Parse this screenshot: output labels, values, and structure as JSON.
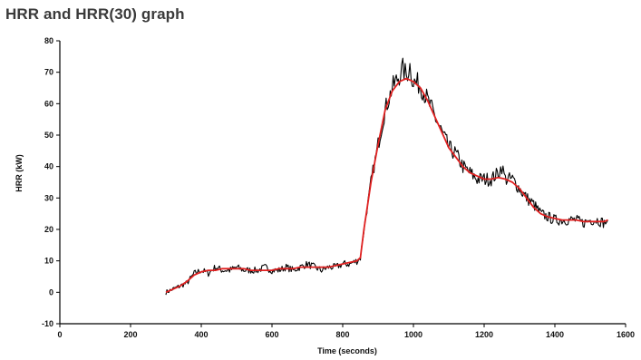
{
  "page_title": "HRR and HRR(30) graph",
  "chart_data": {
    "type": "line",
    "title": "HRR and HRR(30) graph",
    "xlabel": "Time (seconds)",
    "ylabel": "HRR (kW)",
    "xlim": [
      0,
      1600
    ],
    "ylim": [
      -10,
      80
    ],
    "xticks": [
      0,
      200,
      400,
      600,
      800,
      1000,
      1200,
      1400,
      1600
    ],
    "yticks": [
      -10,
      0,
      10,
      20,
      30,
      40,
      50,
      60,
      70,
      80
    ],
    "grid": false,
    "legend": "none",
    "series": [
      {
        "color": "#000000",
        "style": "noisy",
        "x": [
          300,
          320,
          340,
          360,
          380,
          400,
          420,
          440,
          460,
          480,
          500,
          520,
          540,
          560,
          580,
          600,
          620,
          640,
          660,
          680,
          700,
          720,
          740,
          760,
          780,
          800,
          820,
          840,
          850,
          860,
          880,
          900,
          920,
          940,
          960,
          970,
          980,
          990,
          1000,
          1020,
          1040,
          1060,
          1080,
          1100,
          1120,
          1140,
          1160,
          1180,
          1200,
          1220,
          1240,
          1250,
          1260,
          1280,
          1300,
          1320,
          1340,
          1360,
          1380,
          1400,
          1420,
          1440,
          1460,
          1480,
          1500,
          1520,
          1540,
          1550
        ],
        "values": [
          0,
          1,
          2,
          3,
          6,
          7,
          6,
          8,
          7,
          7,
          8,
          7,
          7,
          7,
          8,
          7,
          7,
          8,
          7,
          8,
          9,
          8,
          7,
          8,
          8,
          9,
          9,
          10,
          11,
          20,
          35,
          47,
          58,
          65,
          69,
          71,
          69,
          72,
          67,
          66,
          61,
          56,
          51,
          46,
          44,
          40,
          38,
          36,
          36,
          36,
          38,
          40,
          36,
          36,
          33,
          30,
          28,
          25,
          24,
          23,
          23,
          23,
          23,
          22,
          23,
          23,
          22,
          23
        ]
      },
      {
        "color": "#e02020",
        "style": "smooth",
        "x": [
          300,
          320,
          340,
          360,
          380,
          400,
          420,
          440,
          460,
          480,
          500,
          520,
          540,
          560,
          580,
          600,
          620,
          640,
          660,
          680,
          700,
          720,
          740,
          760,
          780,
          800,
          820,
          840,
          850,
          860,
          880,
          900,
          920,
          940,
          960,
          980,
          1000,
          1020,
          1040,
          1060,
          1080,
          1100,
          1120,
          1140,
          1160,
          1180,
          1200,
          1220,
          1240,
          1260,
          1280,
          1300,
          1320,
          1340,
          1360,
          1380,
          1400,
          1420,
          1440,
          1460,
          1480,
          1500,
          1520,
          1540,
          1550
        ],
        "values": [
          0,
          1,
          2,
          3.5,
          5.5,
          6.5,
          7,
          7,
          7.5,
          7.5,
          7.5,
          7.5,
          7,
          7,
          7,
          7,
          7.5,
          7.5,
          7.5,
          8,
          8,
          8,
          8,
          8,
          8.5,
          9,
          9.5,
          10,
          11,
          20,
          35,
          47,
          58,
          64,
          67,
          68,
          67,
          65,
          61,
          56,
          51,
          46,
          43,
          40,
          38,
          37,
          36,
          36,
          36.5,
          36,
          35,
          33,
          30,
          27,
          25,
          24,
          23.5,
          23,
          23,
          23,
          22.5,
          22.5,
          22.5,
          22.5,
          23
        ]
      }
    ]
  }
}
